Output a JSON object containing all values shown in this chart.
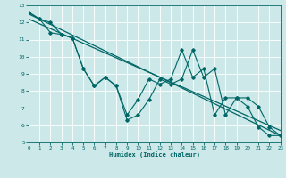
{
  "xlabel": "Humidex (Indice chaleur)",
  "xlim": [
    0,
    23
  ],
  "ylim": [
    5,
    13
  ],
  "xticks": [
    0,
    1,
    2,
    3,
    4,
    5,
    6,
    7,
    8,
    9,
    10,
    11,
    12,
    13,
    14,
    15,
    16,
    17,
    18,
    19,
    20,
    21,
    22,
    23
  ],
  "yticks": [
    5,
    6,
    7,
    8,
    9,
    10,
    11,
    12,
    13
  ],
  "bg_color": "#cce8e8",
  "grid_color": "#ffffff",
  "line_color": "#006666",
  "series1_x": [
    0,
    1,
    2,
    3,
    4,
    5,
    6,
    7,
    8,
    9,
    10,
    11,
    12,
    13,
    14,
    15,
    16,
    17,
    18,
    19,
    20,
    21,
    22,
    23
  ],
  "series1_y": [
    12.6,
    12.2,
    12.0,
    11.3,
    11.1,
    9.3,
    8.3,
    8.8,
    8.3,
    6.3,
    6.6,
    7.5,
    8.7,
    8.4,
    8.7,
    10.4,
    8.8,
    9.3,
    6.6,
    7.6,
    7.6,
    7.1,
    5.9,
    5.4
  ],
  "series2_x": [
    0,
    1,
    2,
    3,
    4,
    5,
    6,
    7,
    8,
    9,
    10,
    11,
    12,
    13,
    14,
    15,
    16,
    17,
    18,
    19,
    20,
    21,
    22,
    23
  ],
  "series2_y": [
    12.6,
    12.2,
    11.4,
    11.3,
    11.1,
    9.3,
    8.3,
    8.8,
    8.3,
    6.6,
    7.5,
    8.7,
    8.4,
    8.7,
    10.4,
    8.8,
    9.3,
    6.6,
    7.6,
    7.6,
    7.1,
    5.9,
    5.4,
    5.4
  ],
  "trend1_x": [
    0,
    23
  ],
  "trend1_y": [
    12.5,
    5.4
  ],
  "trend2_x": [
    0,
    23
  ],
  "trend2_y": [
    12.2,
    5.7
  ]
}
